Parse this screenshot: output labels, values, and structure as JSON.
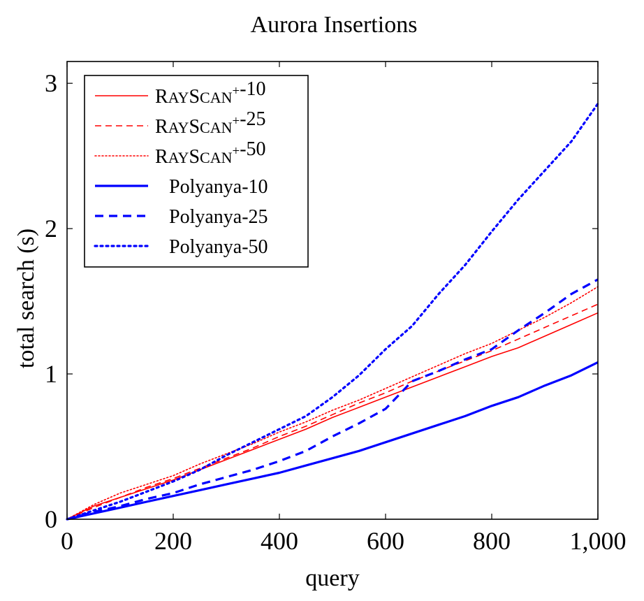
{
  "chart_data": {
    "type": "line",
    "title": "Aurora Insertions",
    "xlabel": "query",
    "ylabel": "total search (s)",
    "xlim": [
      0,
      1000
    ],
    "ylim": [
      0,
      3.15
    ],
    "xticks": [
      0,
      200,
      400,
      600,
      800,
      1000
    ],
    "xtick_labels": [
      "0",
      "200",
      "400",
      "600",
      "800",
      "1,000"
    ],
    "yticks": [
      0,
      1,
      2,
      3
    ],
    "ytick_labels": [
      "0",
      "1",
      "2",
      "3"
    ],
    "grid": false,
    "legend_position": "top-left",
    "series": [
      {
        "name": "RAYSCAN+-10",
        "legend": {
          "initial1": "R",
          "small1": "AY",
          "initial2": "S",
          "small2": "CAN",
          "sup": "+",
          "suffix": "-10"
        },
        "color": "#ff0000",
        "style": "solid",
        "width": 1.6,
        "x": [
          0,
          50,
          100,
          150,
          200,
          250,
          300,
          350,
          400,
          450,
          500,
          550,
          600,
          650,
          700,
          750,
          800,
          850,
          900,
          950,
          1000
        ],
        "y": [
          0,
          0.09,
          0.15,
          0.21,
          0.27,
          0.34,
          0.41,
          0.48,
          0.55,
          0.62,
          0.7,
          0.77,
          0.84,
          0.91,
          0.98,
          1.05,
          1.12,
          1.18,
          1.26,
          1.34,
          1.42
        ]
      },
      {
        "name": "RAYSCAN+-25",
        "legend": {
          "initial1": "R",
          "small1": "AY",
          "initial2": "S",
          "small2": "CAN",
          "sup": "+",
          "suffix": "-25"
        },
        "color": "#ff0000",
        "style": "dashed",
        "width": 1.6,
        "x": [
          0,
          50,
          100,
          150,
          200,
          250,
          300,
          350,
          400,
          450,
          500,
          550,
          600,
          650,
          700,
          750,
          800,
          850,
          900,
          950,
          1000
        ],
        "y": [
          0,
          0.08,
          0.15,
          0.22,
          0.28,
          0.35,
          0.42,
          0.49,
          0.57,
          0.64,
          0.72,
          0.8,
          0.87,
          0.95,
          1.02,
          1.09,
          1.16,
          1.24,
          1.32,
          1.4,
          1.48
        ]
      },
      {
        "name": "RAYSCAN+-50",
        "legend": {
          "initial1": "R",
          "small1": "AY",
          "initial2": "S",
          "small2": "CAN",
          "sup": "+",
          "suffix": "-50"
        },
        "color": "#ff0000",
        "style": "dotted",
        "width": 1.6,
        "x": [
          0,
          50,
          100,
          150,
          200,
          250,
          300,
          350,
          400,
          450,
          500,
          550,
          600,
          650,
          700,
          750,
          800,
          850,
          900,
          950,
          1000
        ],
        "y": [
          0,
          0.1,
          0.18,
          0.24,
          0.3,
          0.38,
          0.45,
          0.52,
          0.6,
          0.67,
          0.75,
          0.82,
          0.9,
          0.98,
          1.06,
          1.14,
          1.21,
          1.3,
          1.39,
          1.49,
          1.6
        ]
      },
      {
        "name": "Polyanya-10",
        "color": "#0000ff",
        "style": "solid",
        "width": 3.2,
        "x": [
          0,
          50,
          100,
          150,
          200,
          250,
          300,
          350,
          400,
          450,
          500,
          550,
          600,
          650,
          700,
          750,
          800,
          850,
          900,
          950,
          1000
        ],
        "y": [
          0,
          0.04,
          0.08,
          0.12,
          0.16,
          0.2,
          0.24,
          0.28,
          0.32,
          0.37,
          0.42,
          0.47,
          0.53,
          0.59,
          0.65,
          0.71,
          0.78,
          0.84,
          0.92,
          0.99,
          1.08
        ]
      },
      {
        "name": "Polyanya-25",
        "color": "#0000ff",
        "style": "dashed",
        "width": 3.2,
        "x": [
          0,
          50,
          100,
          150,
          200,
          250,
          300,
          350,
          400,
          450,
          500,
          550,
          600,
          650,
          700,
          750,
          800,
          850,
          900,
          950,
          1000
        ],
        "y": [
          0,
          0.05,
          0.09,
          0.14,
          0.18,
          0.24,
          0.29,
          0.34,
          0.4,
          0.47,
          0.57,
          0.66,
          0.76,
          0.95,
          1.02,
          1.1,
          1.17,
          1.3,
          1.42,
          1.55,
          1.65
        ]
      },
      {
        "name": "Polyanya-50",
        "color": "#0000ff",
        "style": "dotted",
        "width": 3.2,
        "x": [
          0,
          50,
          100,
          150,
          200,
          250,
          300,
          350,
          400,
          450,
          500,
          550,
          600,
          650,
          700,
          750,
          800,
          850,
          900,
          950,
          1000
        ],
        "y": [
          0,
          0.06,
          0.12,
          0.19,
          0.26,
          0.34,
          0.44,
          0.53,
          0.62,
          0.71,
          0.84,
          0.99,
          1.17,
          1.33,
          1.55,
          1.75,
          1.98,
          2.2,
          2.4,
          2.6,
          2.86
        ]
      }
    ]
  }
}
